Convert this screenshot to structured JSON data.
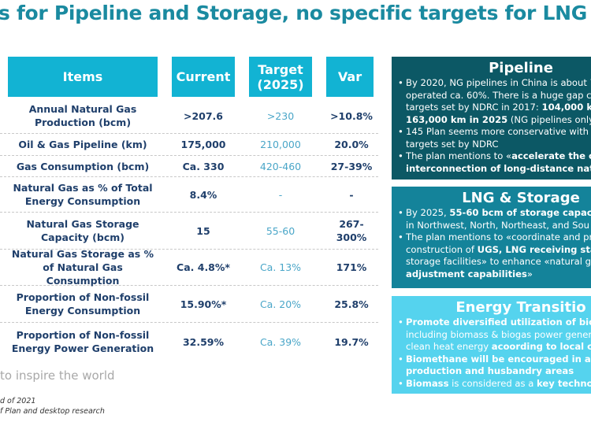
{
  "title": "s for Pipeline and Storage, no specific targets for LNG",
  "table": {
    "headers": [
      "Items",
      "Current",
      "Target (2025)",
      "Var"
    ],
    "rows": [
      [
        "Annual Natural Gas Production (bcm)",
        ">207.6",
        ">230",
        ">10.8%"
      ],
      [
        "Oil & Gas Pipeline (km)",
        "175,000",
        "210,000",
        "20.0%"
      ],
      [
        "Gas Consumption (bcm)",
        "Ca. 330",
        "420-460",
        "27-39%"
      ],
      [
        "Natural Gas as % of Total Energy Consumption",
        "8.4%",
        "-",
        "-"
      ],
      [
        "Natural Gas Storage Capacity (bcm)",
        "15",
        "55-60",
        "267-300%"
      ],
      [
        "Natural Gas Storage as % of Natural Gas Consumption",
        "Ca. 4.8%*",
        "Ca. 13%",
        "171%"
      ],
      [
        "Proportion of Non-fossil Energy Consumption",
        "15.90%*",
        "Ca. 20%",
        "25.8%"
      ],
      [
        "Proportion of Non-fossil Energy Power Generation",
        "32.59%",
        "Ca. 39%",
        "19.7%"
      ]
    ]
  },
  "panels": [
    {
      "title": "Pipeline",
      "color": "#0c5865",
      "bullets": [
        "By 2020, NG pipelines in China is about 7<br>operated ca. 60%. There is a huge gap co<br>targets set by NDRC in 2017: <b>104,000 km</b><br><b>163,000 km in 2025</b> (NG pipelines only)",
        "145 Plan seems more conservative with r<br>targets set by NDRC",
        "The plan mentions to «<b>accelerate the co</b><br><b>interconnection of long-distance natur</b>"
      ]
    },
    {
      "title": "LNG & Storage",
      "color": "#14839a",
      "bullets": [
        "By 2025, <b>55-60 bcm of storage capacity</b><br>in Northwest, North, Northeast, and Sou",
        "The plan mentions to «coordinate and pr<br>construction of <b>UGS, LNG receiving stat</b><br>storage facilities» to enhance «natural ga<br><b>adjustment capabilities</b>»"
      ]
    },
    {
      "title": "Energy Transitio",
      "color": "#55d3ee",
      "bullets": [
        "<b>Promote diversified utilization of biom</b><br>including biomass &amp; biogas power gener<br>clean heat energy <b>acoording to local co</b>",
        "<b>Biomethane will be encouraged in all m</b><br><b>production and husbandry areas</b>",
        "<b>Biomass</b> is considered as a <b>key technolo</b>"
      ]
    }
  ],
  "footer": {
    "slogan": "to inspire the world",
    "note1": "d of 2021",
    "note2": "f Plan and desktop research"
  }
}
